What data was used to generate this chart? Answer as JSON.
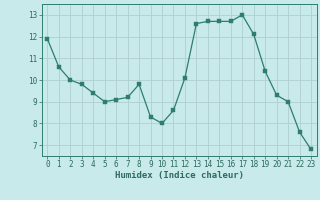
{
  "x": [
    0,
    1,
    2,
    3,
    4,
    5,
    6,
    7,
    8,
    9,
    10,
    11,
    12,
    13,
    14,
    15,
    16,
    17,
    18,
    19,
    20,
    21,
    22,
    23
  ],
  "y": [
    11.9,
    10.6,
    10.0,
    9.8,
    9.4,
    9.0,
    9.1,
    9.2,
    9.8,
    8.3,
    8.0,
    8.6,
    10.1,
    12.6,
    12.7,
    12.7,
    12.7,
    13.0,
    12.1,
    10.4,
    9.3,
    9.0,
    7.6,
    6.8
  ],
  "line_color": "#2e7d6e",
  "marker_color": "#2e7d6e",
  "bg_color": "#c8eaea",
  "grid_color": "#b0cece",
  "xlabel": "Humidex (Indice chaleur)",
  "xlim": [
    -0.5,
    23.5
  ],
  "ylim": [
    6.5,
    13.5
  ],
  "yticks": [
    7,
    8,
    9,
    10,
    11,
    12,
    13
  ],
  "xticks": [
    0,
    1,
    2,
    3,
    4,
    5,
    6,
    7,
    8,
    9,
    10,
    11,
    12,
    13,
    14,
    15,
    16,
    17,
    18,
    19,
    20,
    21,
    22,
    23
  ],
  "tick_label_color": "#2e6b5e",
  "label_fontsize": 6.5,
  "tick_fontsize": 5.5,
  "spine_color": "#2e7d6e",
  "marker_size": 2.5,
  "linewidth": 0.9
}
